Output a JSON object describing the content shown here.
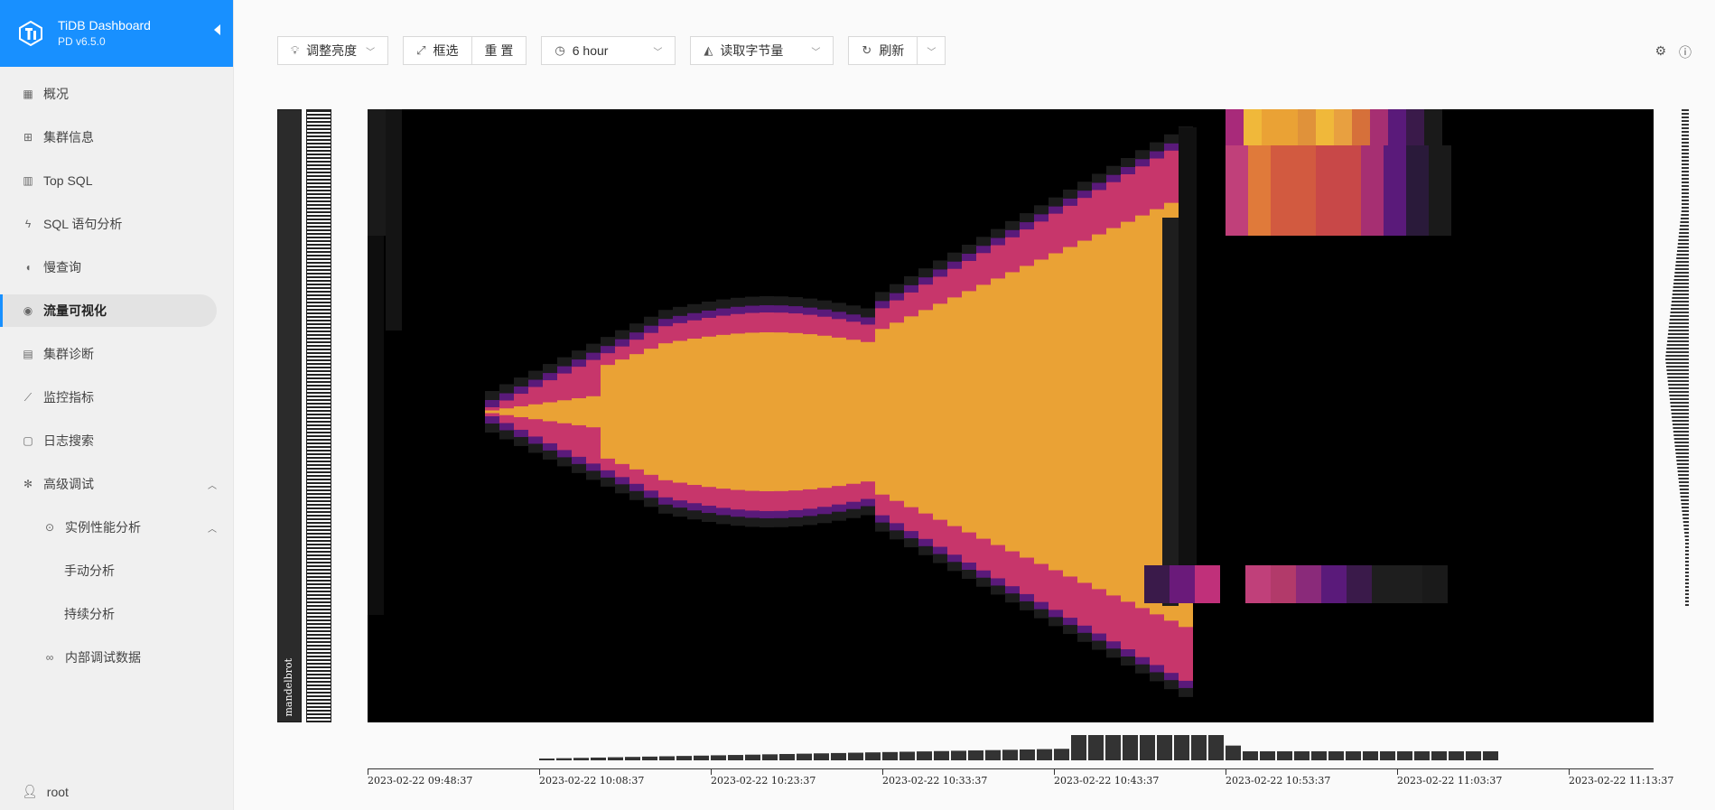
{
  "brand": {
    "title": "TiDB Dashboard",
    "subtitle": "PD v6.5.0"
  },
  "menu": [
    {
      "label": "概况",
      "icon": "grid-icon"
    },
    {
      "label": "集群信息",
      "icon": "cluster-icon"
    },
    {
      "label": "Top SQL",
      "icon": "bar-chart-icon"
    },
    {
      "label": "SQL 语句分析",
      "icon": "lightning-icon"
    },
    {
      "label": "慢查询",
      "icon": "mic-icon"
    },
    {
      "label": "流量可视化",
      "icon": "eye-icon",
      "active": true
    },
    {
      "label": "集群诊断",
      "icon": "clipboard-icon"
    },
    {
      "label": "监控指标",
      "icon": "line-chart-icon"
    },
    {
      "label": "日志搜索",
      "icon": "file-search-icon"
    },
    {
      "label": "高级调试",
      "icon": "bug-icon"
    },
    {
      "label": "实例性能分析",
      "icon": "target-icon"
    },
    {
      "label": "手动分析",
      "icon": ""
    },
    {
      "label": "持续分析",
      "icon": ""
    },
    {
      "label": "内部调试数据",
      "icon": "link-icon"
    }
  ],
  "user": {
    "name": "root"
  },
  "toolbar": {
    "brightness": "调整亮度",
    "select": "框选",
    "reset": "重 置",
    "time_range": "6 hour",
    "metric": "读取字节量",
    "refresh": "刷新"
  },
  "heatmap": {
    "db_label": "mandelbrot",
    "x_ticks": [
      "2023-02-22 09:48:37",
      "2023-02-22 10:08:37",
      "2023-02-22 10:23:37",
      "2023-02-22 10:33:37",
      "2023-02-22 10:43:37",
      "2023-02-22 10:53:37",
      "2023-02-22 11:03:37",
      "2023-02-22 11:13:37"
    ],
    "colors": {
      "hot": "#eaa235",
      "mid": "#c7366b",
      "cool": "#5a1a7a",
      "dark": "#1a1a1a"
    }
  }
}
